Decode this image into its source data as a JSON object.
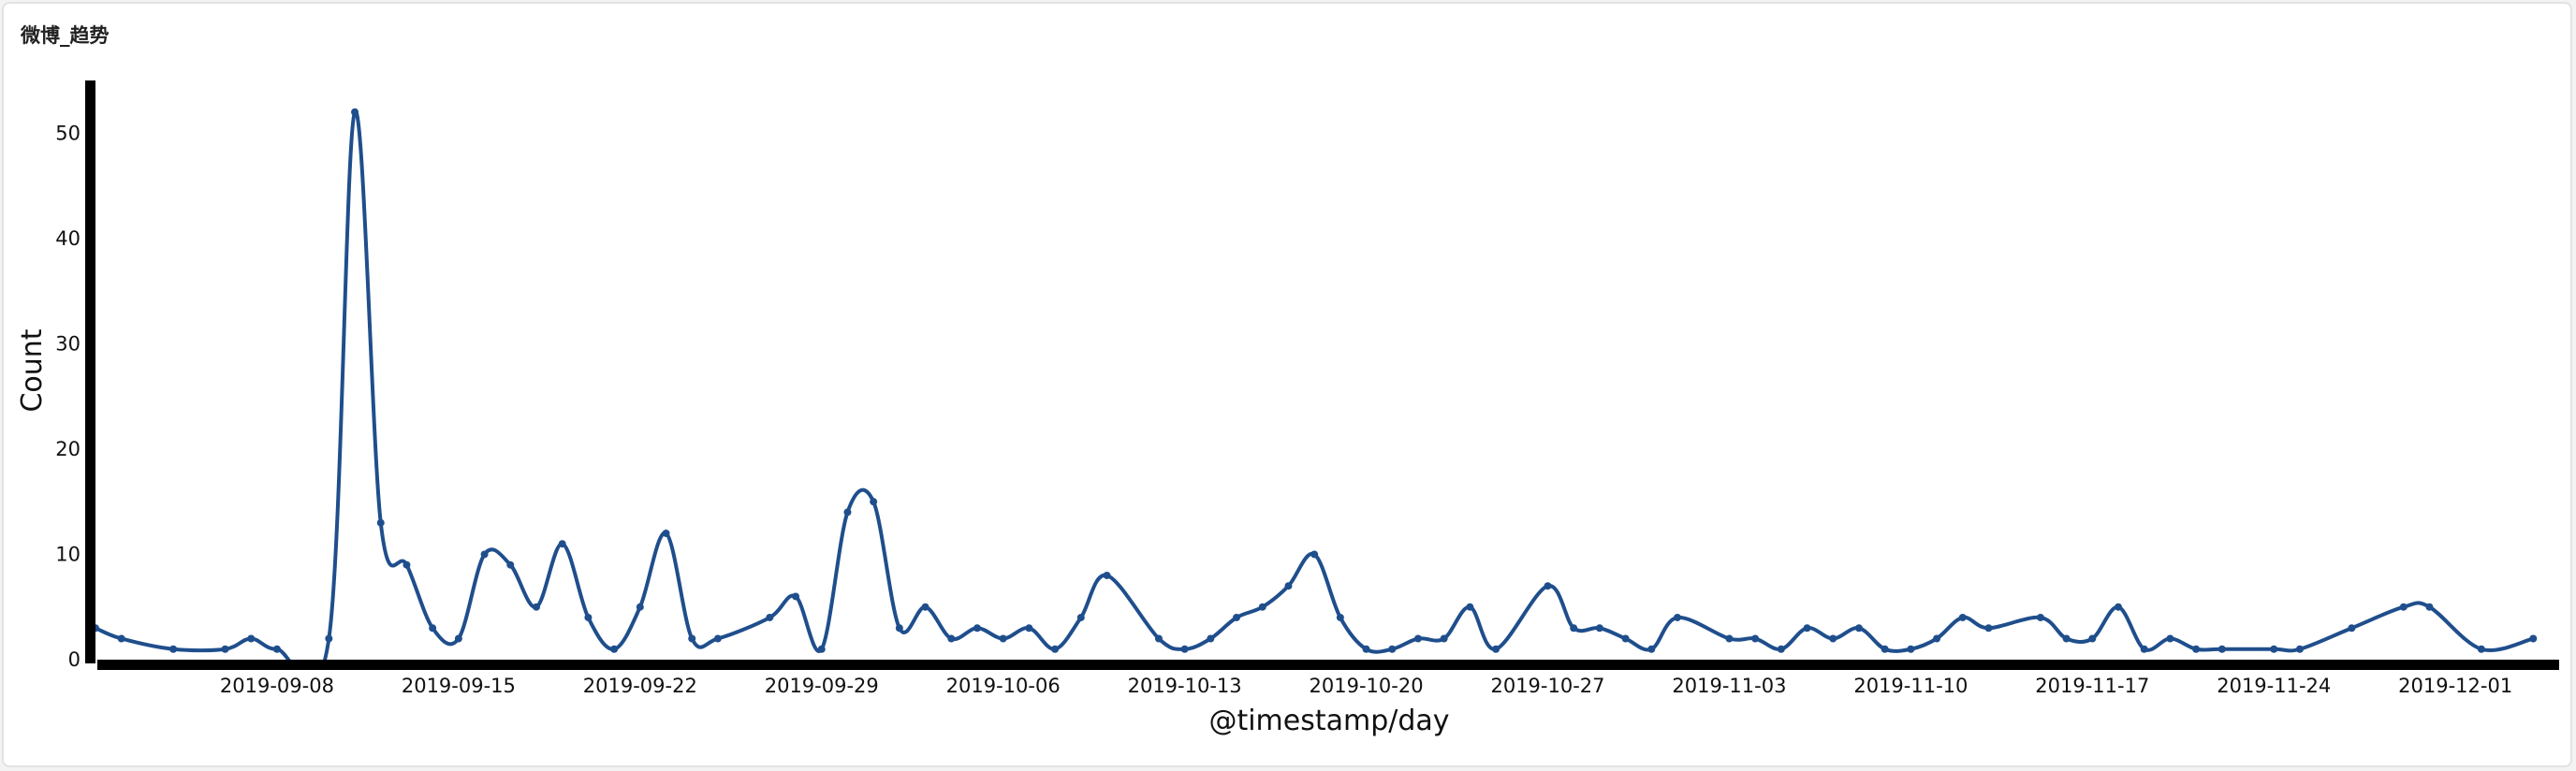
{
  "panel": {
    "title": "微博_趋势"
  },
  "chart_data": {
    "type": "line",
    "title": "",
    "xlabel": "@timestamp/day",
    "ylabel": "Count",
    "ylim": [
      0,
      55
    ],
    "yticks": [
      0,
      10,
      20,
      30,
      40,
      50
    ],
    "xticks": [
      "2019-09-08",
      "2019-09-15",
      "2019-09-22",
      "2019-09-29",
      "2019-10-06",
      "2019-10-13",
      "2019-10-20",
      "2019-10-27",
      "2019-11-03",
      "2019-11-10",
      "2019-11-17",
      "2019-11-24",
      "2019-12-01"
    ],
    "x_start": "2019-09-01",
    "x_end": "2019-12-05",
    "line_color": "#1f4e8c",
    "smooth": true,
    "series": [
      {
        "name": "",
        "x": [
          "2019-09-01",
          "2019-09-02",
          "2019-09-04",
          "2019-09-06",
          "2019-09-07",
          "2019-09-08",
          "2019-09-10",
          "2019-09-11",
          "2019-09-12",
          "2019-09-13",
          "2019-09-14",
          "2019-09-15",
          "2019-09-16",
          "2019-09-17",
          "2019-09-18",
          "2019-09-19",
          "2019-09-20",
          "2019-09-21",
          "2019-09-22",
          "2019-09-23",
          "2019-09-24",
          "2019-09-25",
          "2019-09-27",
          "2019-09-28",
          "2019-09-29",
          "2019-09-30",
          "2019-10-01",
          "2019-10-02",
          "2019-10-03",
          "2019-10-04",
          "2019-10-05",
          "2019-10-06",
          "2019-10-07",
          "2019-10-08",
          "2019-10-09",
          "2019-10-10",
          "2019-10-12",
          "2019-10-13",
          "2019-10-14",
          "2019-10-15",
          "2019-10-16",
          "2019-10-17",
          "2019-10-18",
          "2019-10-19",
          "2019-10-20",
          "2019-10-21",
          "2019-10-22",
          "2019-10-23",
          "2019-10-24",
          "2019-10-25",
          "2019-10-27",
          "2019-10-28",
          "2019-10-29",
          "2019-10-30",
          "2019-10-31",
          "2019-11-01",
          "2019-11-03",
          "2019-11-04",
          "2019-11-05",
          "2019-11-06",
          "2019-11-07",
          "2019-11-08",
          "2019-11-09",
          "2019-11-10",
          "2019-11-11",
          "2019-11-12",
          "2019-11-13",
          "2019-11-15",
          "2019-11-16",
          "2019-11-17",
          "2019-11-18",
          "2019-11-19",
          "2019-11-20",
          "2019-11-21",
          "2019-11-22",
          "2019-11-24",
          "2019-11-25",
          "2019-11-27",
          "2019-11-29",
          "2019-11-30",
          "2019-12-02",
          "2019-12-04"
        ],
        "y": [
          3,
          2,
          1,
          1,
          2,
          1,
          2,
          52,
          13,
          9,
          3,
          2,
          10,
          9,
          5,
          11,
          4,
          1,
          5,
          12,
          2,
          2,
          4,
          6,
          1,
          14,
          15,
          3,
          5,
          2,
          3,
          2,
          3,
          1,
          4,
          8,
          2,
          1,
          2,
          4,
          5,
          7,
          10,
          4,
          1,
          1,
          2,
          2,
          5,
          1,
          7,
          3,
          3,
          2,
          1,
          4,
          2,
          2,
          1,
          3,
          2,
          3,
          1,
          1,
          2,
          4,
          3,
          4,
          2,
          2,
          5,
          1,
          2,
          1,
          1,
          1,
          1,
          3,
          5,
          5,
          1,
          2
        ]
      }
    ]
  }
}
